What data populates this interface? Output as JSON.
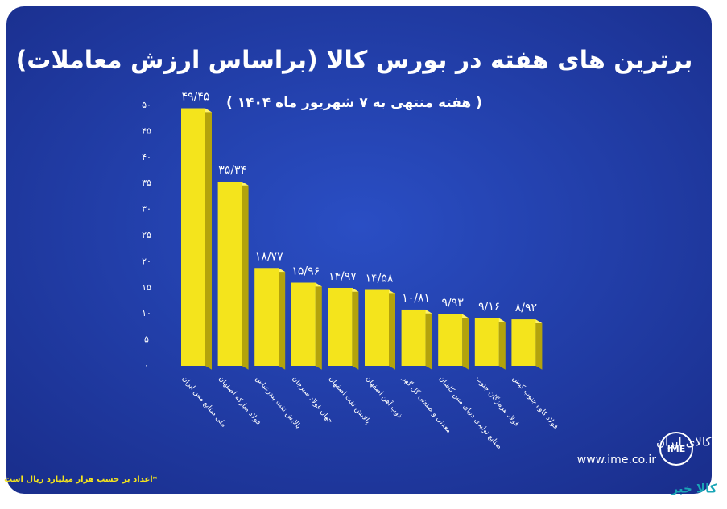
{
  "chart_data": {
    "type": "bar",
    "title": "برترین های هفته در بورس کالا (براساس ارزش معاملات)",
    "subtitle": "( هفته منتهی به ۷ شهریور ماه ۱۴۰۴ )",
    "footnote": "*اعداد بر حسب هزار میلیارد ریال است",
    "categories": [
      "ملی صنایع مس ایران",
      "فولاد مبارکه اصفهان",
      "پالایش نفت بندرعباس",
      "جهان فولاد سیرجان",
      "پالایش نفت اصفهان",
      "ذوب آهن اصفهان",
      "معدنی و صنعتی گل گهر",
      "صنایع تولیدی دنیای مس کاشان",
      "فولاد هرمزگان جنوب",
      "فولاد کاوه جنوب کیش"
    ],
    "values": [
      49.45,
      35.34,
      18.77,
      15.96,
      14.97,
      14.58,
      10.81,
      9.93,
      9.16,
      8.92
    ],
    "value_labels": [
      "۴۹/۴۵",
      "۳۵/۳۴",
      "۱۸/۷۷",
      "۱۵/۹۶",
      "۱۴/۹۷",
      "۱۴/۵۸",
      "۱۰/۸۱",
      "۹/۹۳",
      "۹/۱۶",
      "۸/۹۲"
    ],
    "color": "#f4e41c",
    "ylim": [
      0,
      50
    ],
    "yticks": [
      {
        "value": 0,
        "label": "۰"
      },
      {
        "value": 5,
        "label": "۵"
      },
      {
        "value": 10,
        "label": "۱۰"
      },
      {
        "value": 15,
        "label": "۱۵"
      },
      {
        "value": 20,
        "label": "۲۰"
      },
      {
        "value": 25,
        "label": "۲۵"
      },
      {
        "value": 30,
        "label": "۳۰"
      },
      {
        "value": 35,
        "label": "۳۵"
      },
      {
        "value": 40,
        "label": "۴۰"
      },
      {
        "value": 45,
        "label": "۴۵"
      },
      {
        "value": 50,
        "label": "۵۰"
      }
    ],
    "grid": false
  },
  "logo": {
    "name": "بورس کالای ایران",
    "url": "www.ime.co.ir",
    "abbr": "IME",
    "corner": "کالا خبر"
  }
}
